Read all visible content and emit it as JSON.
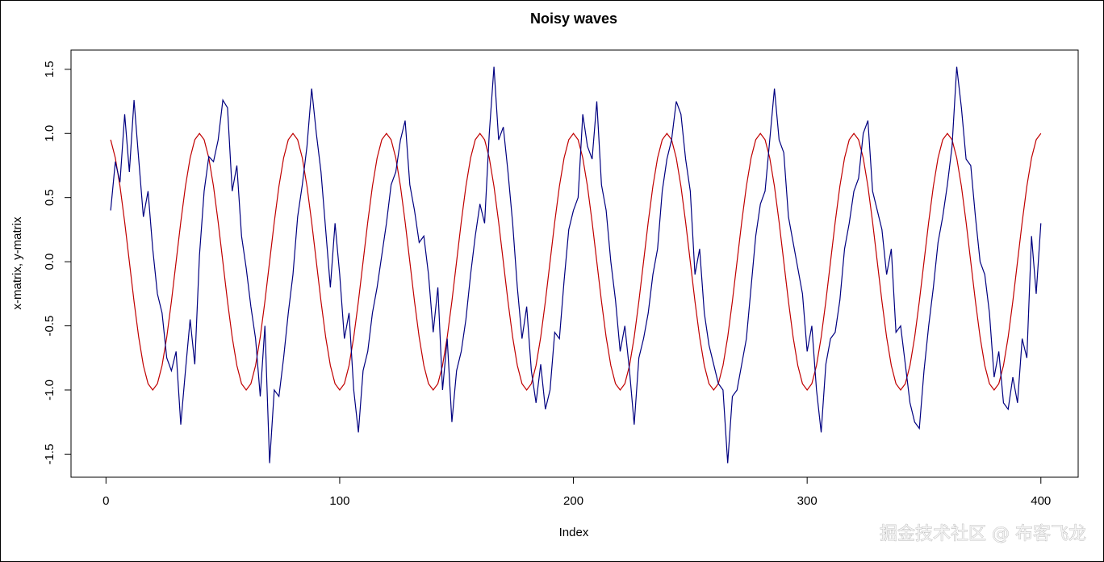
{
  "chart_data": {
    "type": "line",
    "title": "Noisy waves",
    "x_label": "Index",
    "y_label": "x-matrix, y-matrix",
    "watermark": "掘金技术社区 @ 布客飞龙",
    "xlim": [
      -14.96,
      415.96
    ],
    "ylim": [
      -1.68,
      1.65
    ],
    "xticks": [
      0,
      100,
      200,
      300,
      400
    ],
    "yticks": [
      -1.5,
      {
        "value": -1,
        "label": "-1.0"
      },
      -0.5,
      {
        "value": 0,
        "label": "0.0"
      },
      0.5,
      {
        "value": 1,
        "label": "1.0"
      },
      1.5
    ],
    "x": [
      2,
      4,
      6,
      8,
      10,
      12,
      14,
      16,
      18,
      20,
      22,
      24,
      26,
      28,
      30,
      32,
      34,
      36,
      38,
      40,
      42,
      44,
      46,
      48,
      50,
      52,
      54,
      56,
      58,
      60,
      62,
      64,
      66,
      68,
      70,
      72,
      74,
      76,
      78,
      80,
      82,
      84,
      86,
      88,
      90,
      92,
      94,
      96,
      98,
      100,
      102,
      104,
      106,
      108,
      110,
      112,
      114,
      116,
      118,
      120,
      122,
      124,
      126,
      128,
      130,
      132,
      134,
      136,
      138,
      140,
      142,
      144,
      146,
      148,
      150,
      152,
      154,
      156,
      158,
      160,
      162,
      164,
      166,
      168,
      170,
      172,
      174,
      176,
      178,
      180,
      182,
      184,
      186,
      188,
      190,
      192,
      194,
      196,
      198,
      200,
      202,
      204,
      206,
      208,
      210,
      212,
      214,
      216,
      218,
      220,
      222,
      224,
      226,
      228,
      230,
      232,
      234,
      236,
      238,
      240,
      242,
      244,
      246,
      248,
      250,
      252,
      254,
      256,
      258,
      260,
      262,
      264,
      266,
      268,
      270,
      272,
      274,
      276,
      278,
      280,
      282,
      284,
      286,
      288,
      290,
      292,
      294,
      296,
      298,
      300,
      302,
      304,
      306,
      308,
      310,
      312,
      314,
      316,
      318,
      320,
      322,
      324,
      326,
      328,
      330,
      332,
      334,
      336,
      338,
      340,
      342,
      344,
      346,
      348,
      350,
      352,
      354,
      356,
      358,
      360,
      362,
      364,
      366,
      368,
      370,
      372,
      374,
      376,
      378,
      380,
      382,
      384,
      386,
      388,
      390,
      392,
      394,
      396,
      398,
      400
    ],
    "series": [
      {
        "color": "#c00000",
        "values": [
          0.951,
          0.809,
          0.588,
          0.309,
          0,
          -0.309,
          -0.588,
          -0.809,
          -0.951,
          -1,
          -0.951,
          -0.809,
          -0.588,
          -0.309,
          0,
          0.309,
          0.588,
          0.809,
          0.951,
          1,
          0.951,
          0.809,
          0.588,
          0.309,
          0,
          -0.309,
          -0.588,
          -0.809,
          -0.951,
          -1,
          -0.951,
          -0.809,
          -0.588,
          -0.309,
          0,
          0.309,
          0.588,
          0.809,
          0.951,
          1,
          0.951,
          0.809,
          0.588,
          0.309,
          0,
          -0.309,
          -0.588,
          -0.809,
          -0.951,
          -1,
          -0.951,
          -0.809,
          -0.588,
          -0.309,
          0,
          0.309,
          0.588,
          0.809,
          0.951,
          1,
          0.951,
          0.809,
          0.588,
          0.309,
          0,
          -0.309,
          -0.588,
          -0.809,
          -0.951,
          -1,
          -0.951,
          -0.809,
          -0.588,
          -0.309,
          0,
          0.309,
          0.588,
          0.809,
          0.951,
          1,
          0.951,
          0.809,
          0.588,
          0.309,
          0,
          -0.309,
          -0.588,
          -0.809,
          -0.951,
          -1,
          -0.951,
          -0.809,
          -0.588,
          -0.309,
          0,
          0.309,
          0.588,
          0.809,
          0.951,
          1,
          0.951,
          0.809,
          0.588,
          0.309,
          0,
          -0.309,
          -0.588,
          -0.809,
          -0.951,
          -1,
          -0.951,
          -0.809,
          -0.588,
          -0.309,
          0,
          0.309,
          0.588,
          0.809,
          0.951,
          1,
          0.951,
          0.809,
          0.588,
          0.309,
          0,
          -0.309,
          -0.588,
          -0.809,
          -0.951,
          -1,
          -0.951,
          -0.809,
          -0.588,
          -0.309,
          0,
          0.309,
          0.588,
          0.809,
          0.951,
          1,
          0.951,
          0.809,
          0.588,
          0.309,
          0,
          -0.309,
          -0.588,
          -0.809,
          -0.951,
          -1,
          -0.951,
          -0.809,
          -0.588,
          -0.309,
          0,
          0.309,
          0.588,
          0.809,
          0.951,
          1,
          0.951,
          0.809,
          0.588,
          0.309,
          0,
          -0.309,
          -0.588,
          -0.809,
          -0.951,
          -1,
          -0.951,
          -0.809,
          -0.588,
          -0.309,
          0,
          0.309,
          0.588,
          0.809,
          0.951,
          1,
          0.951,
          0.809,
          0.588,
          0.309,
          0,
          -0.309,
          -0.588,
          -0.809,
          -0.951,
          -1,
          -0.951,
          -0.809,
          -0.588,
          -0.309,
          0,
          0.309,
          0.588,
          0.809,
          0.951,
          1
        ]
      },
      {
        "color": "#000080",
        "values": [
          0.4,
          0.78,
          0.62,
          1.15,
          0.7,
          1.26,
          0.8,
          0.35,
          0.55,
          0.1,
          -0.25,
          -0.4,
          -0.75,
          -0.85,
          -0.7,
          -1.27,
          -0.85,
          -0.45,
          -0.8,
          0.05,
          0.55,
          0.82,
          0.78,
          0.95,
          1.26,
          1.2,
          0.55,
          0.75,
          0.2,
          -0.05,
          -0.35,
          -0.6,
          -1.05,
          -0.5,
          -1.57,
          -1.0,
          -1.05,
          -0.75,
          -0.4,
          -0.1,
          0.35,
          0.6,
          0.9,
          1.35,
          1.0,
          0.7,
          0.25,
          -0.2,
          0.3,
          -0.1,
          -0.6,
          -0.4,
          -1.0,
          -1.33,
          -0.85,
          -0.7,
          -0.4,
          -0.2,
          0.05,
          0.3,
          0.6,
          0.7,
          0.95,
          1.1,
          0.6,
          0.4,
          0.15,
          0.2,
          -0.1,
          -0.55,
          -0.2,
          -1.0,
          -0.6,
          -1.25,
          -0.85,
          -0.7,
          -0.45,
          -0.1,
          0.2,
          0.45,
          0.3,
          1.0,
          1.52,
          0.95,
          1.05,
          0.7,
          0.3,
          -0.2,
          -0.6,
          -0.35,
          -0.85,
          -1.1,
          -0.8,
          -1.15,
          -1.0,
          -0.55,
          -0.6,
          -0.15,
          0.25,
          0.4,
          0.5,
          1.15,
          0.9,
          0.8,
          1.25,
          0.6,
          0.4,
          0.0,
          -0.3,
          -0.7,
          -0.5,
          -0.85,
          -1.27,
          -0.75,
          -0.6,
          -0.4,
          -0.1,
          0.1,
          0.55,
          0.8,
          0.95,
          1.25,
          1.15,
          0.8,
          0.55,
          -0.1,
          0.1,
          -0.4,
          -0.65,
          -0.8,
          -0.95,
          -1.0,
          -1.57,
          -1.05,
          -1.0,
          -0.8,
          -0.6,
          -0.2,
          0.2,
          0.45,
          0.55,
          0.95,
          1.35,
          0.95,
          0.85,
          0.35,
          0.15,
          -0.05,
          -0.25,
          -0.7,
          -0.5,
          -1.0,
          -1.33,
          -0.8,
          -0.6,
          -0.55,
          -0.3,
          0.1,
          0.3,
          0.55,
          0.65,
          1.0,
          1.1,
          0.55,
          0.4,
          0.25,
          -0.1,
          0.1,
          -0.55,
          -0.5,
          -0.8,
          -1.1,
          -1.25,
          -1.3,
          -0.85,
          -0.5,
          -0.2,
          0.15,
          0.35,
          0.6,
          0.9,
          1.52,
          1.2,
          0.8,
          0.75,
          0.35,
          0.0,
          -0.1,
          -0.4,
          -0.9,
          -0.7,
          -1.1,
          -1.15,
          -0.9,
          -1.1,
          -0.6,
          -0.75,
          0.2,
          -0.25,
          0.3
        ]
      }
    ]
  }
}
